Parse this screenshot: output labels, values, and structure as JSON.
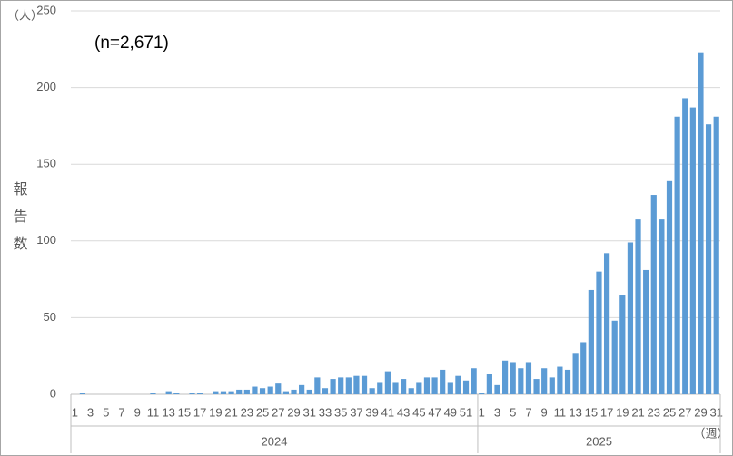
{
  "chart_data": {
    "type": "bar",
    "annotation": "(n=2,671)",
    "y_unit": "（人）",
    "x_unit": "（週）",
    "y_label": "報告数",
    "color": "#5b9bd5",
    "ylim": [
      0,
      250
    ],
    "yticks": [
      0,
      50,
      100,
      150,
      200,
      250
    ],
    "grid": true,
    "groups": [
      {
        "name": "2024",
        "categories": [
          "1",
          null,
          "3",
          null,
          "5",
          null,
          "7",
          null,
          "9",
          null,
          "11",
          null,
          "13",
          null,
          "15",
          null,
          "17",
          null,
          "19",
          null,
          "21",
          null,
          "23",
          null,
          "25",
          null,
          "27",
          null,
          "29",
          null,
          "31",
          null,
          "33",
          null,
          "35",
          null,
          "37",
          null,
          "39",
          null,
          "41",
          null,
          "43",
          null,
          "45",
          null,
          "47",
          null,
          "49",
          null,
          "51",
          null
        ],
        "values": [
          0,
          1,
          0,
          0,
          0,
          0,
          0,
          0,
          0,
          0,
          1,
          0,
          2,
          1,
          0,
          1,
          1,
          0,
          2,
          2,
          2,
          3,
          3,
          5,
          4,
          5,
          7,
          2,
          3,
          6,
          3,
          11,
          4,
          10,
          11,
          11,
          12,
          12,
          4,
          8,
          15,
          8,
          10,
          4,
          8,
          11,
          11,
          16,
          8,
          12,
          9,
          17
        ]
      },
      {
        "name": "2025",
        "categories": [
          "1",
          null,
          "3",
          null,
          "5",
          null,
          "7",
          null,
          "9",
          null,
          "11",
          null,
          "13",
          null,
          "15",
          null,
          "17",
          null,
          "19",
          null,
          "21",
          null,
          "23",
          null,
          "25",
          null,
          "27",
          null,
          "29",
          null,
          "31"
        ],
        "values": [
          1,
          13,
          6,
          22,
          21,
          17,
          21,
          10,
          17,
          11,
          18,
          16,
          27,
          34,
          68,
          80,
          92,
          48,
          65,
          99,
          114,
          81,
          130,
          114,
          139,
          181,
          193,
          187,
          223,
          176,
          181
        ]
      }
    ]
  }
}
